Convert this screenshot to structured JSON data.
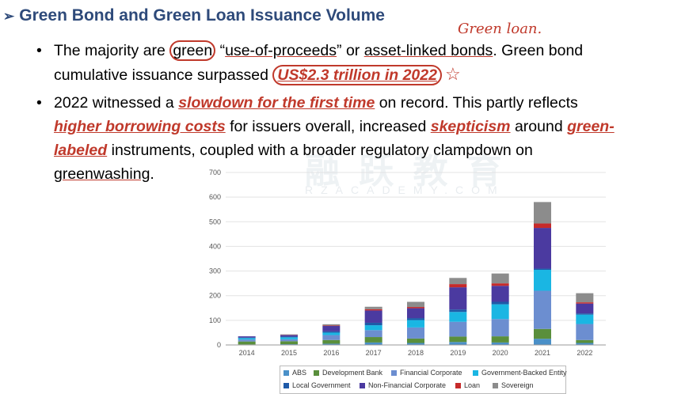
{
  "slide": {
    "arrow": "➢",
    "title": "Green Bond and Green Loan Issuance Volume",
    "bullet_glyph": "•",
    "b1": {
      "l1_a": "The majority are ",
      "l1_b": "green",
      "l1_c": " “",
      "l1_d": "use-of-proceeds",
      "l1_e": "” or ",
      "l1_f": "asset-linked bonds",
      "l1_g": ". Green bond",
      "l2_a": "cumulative issuance surpassed ",
      "l2_b": "US$2.3 trillion in 2022"
    },
    "b2": {
      "l1_a": "2022 witnessed a ",
      "l1_b": "slowdown for the first time",
      "l1_c": " on record. This partly reflects",
      "l2_a": "higher borrowing costs",
      "l2_b": " for issuers overall, increased ",
      "l2_c": "skepticism",
      "l2_d": " around ",
      "l2_e": "green-",
      "l3_a": "labeled",
      "l3_b": " instruments, coupled with a broader regulatory clampdown on",
      "l4_a": "greenwashing",
      "l4_b": "."
    },
    "handwritten_note": "Green loan.",
    "watermark": "融 跃 教 育",
    "watermark_sub": "RZACADEMY.COM"
  },
  "chart_data": {
    "type": "bar",
    "stacked": true,
    "categories": [
      "2014",
      "2015",
      "2016",
      "2017",
      "2018",
      "2019",
      "2020",
      "2021",
      "2022"
    ],
    "ylim": [
      0,
      700
    ],
    "yticks": [
      0,
      100,
      200,
      300,
      400,
      500,
      600,
      700
    ],
    "grid": true,
    "legend_position": "bottom",
    "series": [
      {
        "name": "ABS",
        "color": "#4a90c8",
        "values": [
          2,
          3,
          5,
          10,
          8,
          12,
          10,
          25,
          8
        ]
      },
      {
        "name": "Development Bank",
        "color": "#5a8f3c",
        "values": [
          12,
          12,
          15,
          22,
          18,
          22,
          25,
          40,
          12
        ]
      },
      {
        "name": "Financial Corporate",
        "color": "#6c8ed0",
        "values": [
          8,
          8,
          20,
          28,
          45,
          60,
          70,
          155,
          65
        ]
      },
      {
        "name": "Government-Backed Entity",
        "color": "#1ab6e3",
        "values": [
          6,
          8,
          10,
          20,
          30,
          40,
          60,
          85,
          38
        ]
      },
      {
        "name": "Local Government",
        "color": "#1e5aa8",
        "values": [
          2,
          3,
          5,
          10,
          8,
          10,
          10,
          5,
          5
        ]
      },
      {
        "name": "Non-Financial Corporate",
        "color": "#4b3aa0",
        "values": [
          5,
          6,
          22,
          50,
          40,
          90,
          65,
          165,
          40
        ]
      },
      {
        "name": "Loan",
        "color": "#c62a2a",
        "values": [
          0,
          1,
          2,
          5,
          5,
          13,
          10,
          18,
          5
        ]
      },
      {
        "name": "Sovereign",
        "color": "#8c8c8c",
        "values": [
          0,
          2,
          5,
          10,
          21,
          25,
          40,
          87,
          37
        ]
      }
    ]
  }
}
